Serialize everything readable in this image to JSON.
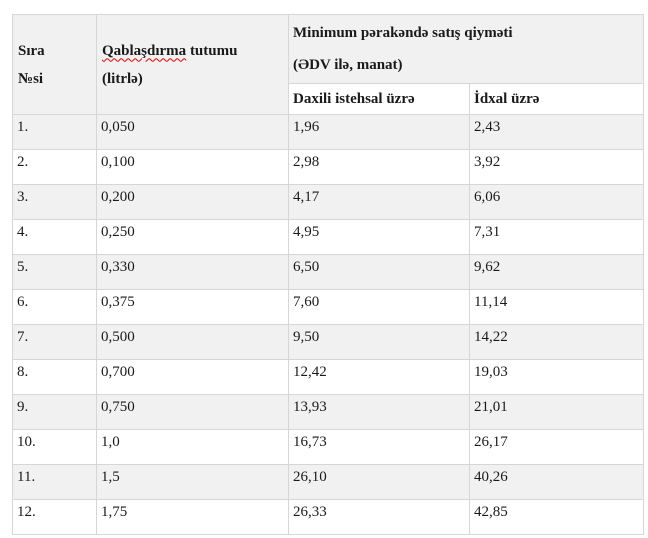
{
  "document": {
    "table": {
      "header": {
        "row_no": {
          "line1": "Sıra",
          "line2": "№si"
        },
        "capacity": {
          "misspelled_word": "Qablaşdırma",
          "rest": " tutumu",
          "line2": "(litrlə)"
        },
        "price_group": {
          "line1": "Minimum pərakəndə satış qiyməti",
          "line2": "(ƏDV ilə, manat)"
        },
        "domestic": "Daxili istehsal üzrə",
        "import": "İdxal üzrə"
      },
      "rows": [
        {
          "no": "1.",
          "capacity": "0,050",
          "domestic": "1,96",
          "import": "2,43"
        },
        {
          "no": "2.",
          "capacity": "0,100",
          "domestic": "2,98",
          "import": "3,92"
        },
        {
          "no": "3.",
          "capacity": "0,200",
          "domestic": "4,17",
          "import": "6,06"
        },
        {
          "no": "4.",
          "capacity": "0,250",
          "domestic": "4,95",
          "import": "7,31"
        },
        {
          "no": "5.",
          "capacity": "0,330",
          "domestic": "6,50",
          "import": "9,62"
        },
        {
          "no": "6.",
          "capacity": "0,375",
          "domestic": "7,60",
          "import": "11,14"
        },
        {
          "no": "7.",
          "capacity": "0,500",
          "domestic": "9,50",
          "import": "14,22"
        },
        {
          "no": "8.",
          "capacity": "0,700",
          "domestic": "12,42",
          "import": "19,03"
        },
        {
          "no": "9.",
          "capacity": "0,750",
          "domestic": "13,93",
          "import": "21,01"
        },
        {
          "no": "10.",
          "capacity": "1,0",
          "domestic": "16,73",
          "import": "26,17"
        },
        {
          "no": "11.",
          "capacity": "1,5",
          "domestic": "26,10",
          "import": "40,26"
        },
        {
          "no": "12.",
          "capacity": "1,75",
          "domestic": "26,33",
          "import": "42,85"
        }
      ]
    },
    "colors": {
      "stripe": "#f1f1f1",
      "border": "#d6d6d6",
      "text": "#1a1a1a",
      "squiggle": "#e60000",
      "page_bg": "#ffffff"
    }
  }
}
